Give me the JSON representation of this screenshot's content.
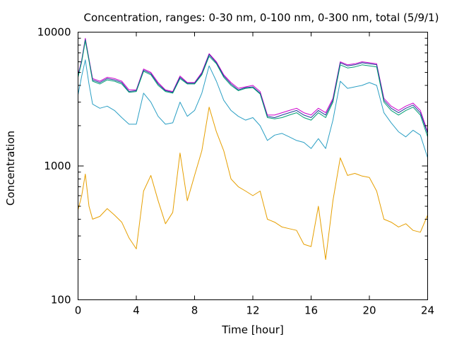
{
  "chart_data": {
    "type": "line",
    "title": "Concentration, ranges: 0-30 nm, 0-100 nm, 0-300 nm, total (5/9/1)",
    "xlabel": "Time [hour]",
    "ylabel": "Concentration",
    "xlim": [
      0,
      24
    ],
    "ylim": [
      100,
      10000
    ],
    "yscale": "log",
    "grid": false,
    "legend": "none",
    "x_ticks": [
      0,
      4,
      8,
      12,
      16,
      20,
      24
    ],
    "x_tick_labels": [
      "0",
      "4",
      "8",
      "12",
      "16",
      "20",
      "24"
    ],
    "y_ticks": [
      100,
      1000,
      10000
    ],
    "y_tick_labels": [
      "100",
      "1000",
      "10000"
    ],
    "x": [
      0,
      0.25,
      0.5,
      0.75,
      1,
      1.5,
      2,
      2.5,
      3,
      3.5,
      4,
      4.5,
      5,
      5.5,
      6,
      6.5,
      7,
      7.5,
      8,
      8.5,
      9,
      9.5,
      10,
      10.5,
      11,
      11.5,
      12,
      12.5,
      13,
      13.5,
      14,
      14.5,
      15,
      15.5,
      16,
      16.5,
      17,
      17.5,
      18,
      18.5,
      19,
      19.5,
      20,
      20.5,
      21,
      21.5,
      22,
      22.5,
      23,
      23.5,
      24
    ],
    "series": [
      {
        "color": "#cc00cc",
        "values": [
          4800,
          6200,
          9000,
          6300,
          4500,
          4300,
          4600,
          4500,
          4300,
          3700,
          3700,
          5300,
          5000,
          4200,
          3700,
          3600,
          4700,
          4200,
          4200,
          5000,
          6900,
          6000,
          4800,
          4200,
          3800,
          3900,
          4000,
          3600,
          2400,
          2400,
          2500,
          2600,
          2700,
          2500,
          2400,
          2700,
          2500,
          3200,
          6000,
          5700,
          5800,
          6000,
          5900,
          5800,
          3200,
          2800,
          2600,
          2800,
          2950,
          2600,
          1800
        ]
      },
      {
        "color": "#1f3d99",
        "values": [
          4700,
          6100,
          8800,
          6200,
          4400,
          4200,
          4500,
          4400,
          4200,
          3600,
          3650,
          5200,
          4900,
          4100,
          3650,
          3550,
          4600,
          4150,
          4150,
          4900,
          6800,
          5900,
          4700,
          4100,
          3700,
          3850,
          3900,
          3500,
          2350,
          2300,
          2400,
          2500,
          2600,
          2400,
          2300,
          2600,
          2400,
          3100,
          5900,
          5600,
          5700,
          5900,
          5800,
          5700,
          3100,
          2700,
          2500,
          2700,
          2850,
          2500,
          1750
        ]
      },
      {
        "color": "#009e73",
        "values": [
          4600,
          6000,
          8600,
          6100,
          4300,
          4100,
          4400,
          4300,
          4100,
          3550,
          3600,
          5100,
          4800,
          4000,
          3600,
          3500,
          4500,
          4100,
          4100,
          4800,
          6600,
          5800,
          4600,
          4000,
          3650,
          3800,
          3850,
          3450,
          2300,
          2250,
          2300,
          2400,
          2500,
          2300,
          2200,
          2500,
          2300,
          3000,
          5700,
          5400,
          5500,
          5700,
          5600,
          5500,
          3000,
          2600,
          2400,
          2600,
          2750,
          2400,
          1650
        ]
      },
      {
        "color": "#2b9fc4",
        "values": [
          3400,
          4700,
          6200,
          4100,
          2900,
          2700,
          2800,
          2600,
          2300,
          2050,
          2050,
          3500,
          3000,
          2350,
          2050,
          2100,
          3000,
          2350,
          2600,
          3500,
          5600,
          4300,
          3100,
          2600,
          2350,
          2200,
          2300,
          2000,
          1550,
          1700,
          1750,
          1650,
          1550,
          1500,
          1350,
          1600,
          1350,
          2200,
          4300,
          3800,
          3900,
          4000,
          4200,
          4000,
          2500,
          2100,
          1800,
          1650,
          1850,
          1700,
          1150
        ]
      },
      {
        "color": "#e69f00",
        "values": [
          470,
          600,
          870,
          500,
          400,
          420,
          480,
          430,
          380,
          290,
          240,
          650,
          850,
          550,
          370,
          450,
          1250,
          550,
          850,
          1300,
          2750,
          1800,
          1300,
          800,
          700,
          650,
          600,
          650,
          400,
          380,
          350,
          340,
          330,
          260,
          250,
          500,
          200,
          550,
          1150,
          850,
          880,
          840,
          820,
          650,
          400,
          380,
          350,
          370,
          330,
          320,
          430
        ]
      }
    ]
  }
}
